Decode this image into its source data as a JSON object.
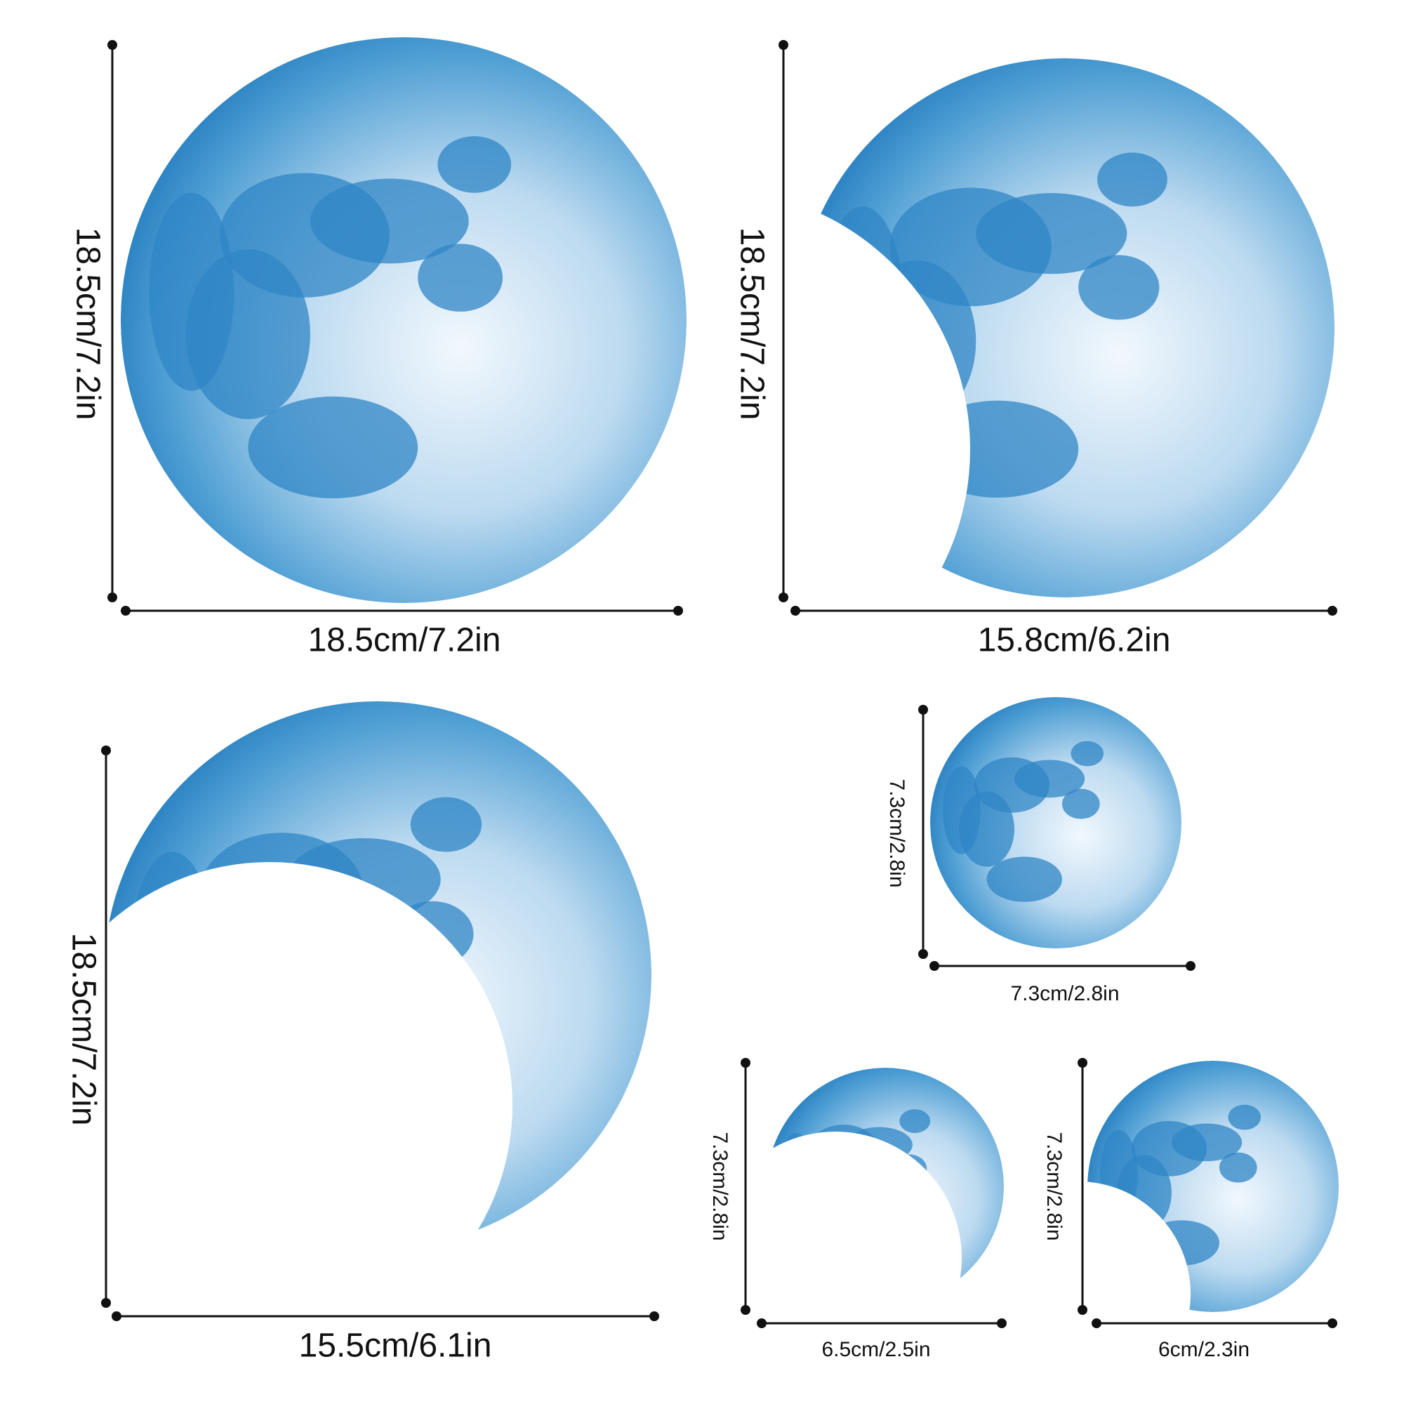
{
  "items": [
    {
      "height": "18.5cm/7.2in",
      "width": "18.5cm/7.2in"
    },
    {
      "height": "18.5cm/7.2in",
      "width": "15.8cm/6.2in"
    },
    {
      "height": "18.5cm/7.2in",
      "width": "15.5cm/6.1in"
    },
    {
      "height": "7.3cm/2.8in",
      "width": "7.3cm/2.8in"
    },
    {
      "height": "7.3cm/2.8in",
      "width": "6.5cm/2.5in"
    },
    {
      "height": "7.3cm/2.8in",
      "width": "6cm/2.3in"
    }
  ]
}
